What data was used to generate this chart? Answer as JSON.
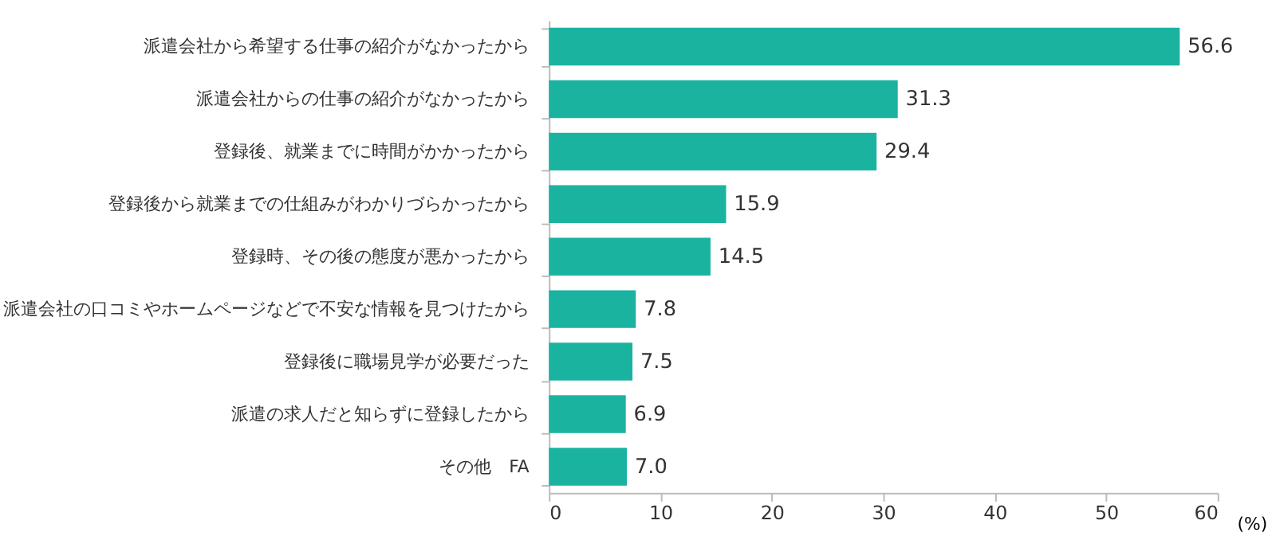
{
  "chart_data": {
    "type": "bar",
    "orientation": "horizontal",
    "xlabel": "(%)",
    "categories": [
      "派遣会社から希望する仕事の紹介がなかったから",
      "派遣会社からの仕事の紹介がなかったから",
      "登録後、就業までに時間がかかったから",
      "登録後から就業までの仕組みがわかりづらかったから",
      "登録時、その後の態度が悪かったから",
      "派遣会社の口コミやホームページなどで不安な情報を見つけたから",
      "登録後に職場見学が必要だった",
      "派遣の求人だと知らずに登録したから",
      "その他　FA"
    ],
    "values": [
      56.6,
      31.3,
      29.4,
      15.9,
      14.5,
      7.8,
      7.5,
      6.9,
      7.0
    ],
    "value_labels": [
      "56.6",
      "31.3",
      "29.4",
      "15.9",
      "14.5",
      "7.8",
      "7.5",
      "6.9",
      "7.0"
    ],
    "color": "#1ab3a0",
    "xlim": [
      0,
      60
    ],
    "xticks": [
      0,
      10,
      20,
      30,
      40,
      50,
      60
    ],
    "grid": false
  }
}
